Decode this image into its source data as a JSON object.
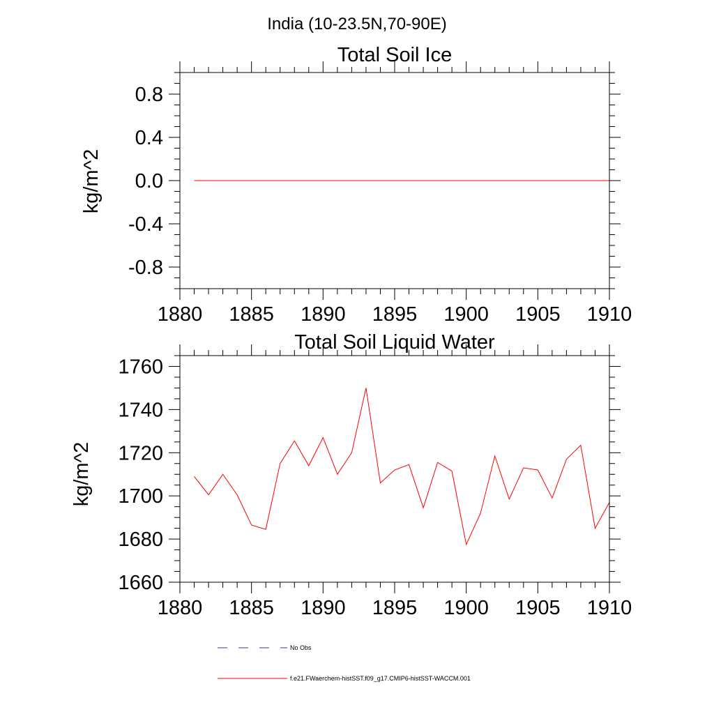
{
  "figure_title": "India (10-23.5N,70-90E)",
  "colors": {
    "series": "#ff0000",
    "obs": "#3b3b8a",
    "axis": "#000000"
  },
  "legend": {
    "obs_label": "No Obs",
    "model_label": "f.e21.FWaerchem-histSST.f09_g17.CMIP6-histSST-WACCM.001"
  },
  "chart_data": [
    {
      "type": "line",
      "title": "Total Soil Ice",
      "xlabel": "",
      "ylabel": "kg/m^2",
      "xlim": [
        1880,
        1910
      ],
      "ylim": [
        -1.0,
        1.0
      ],
      "xticks": [
        1880,
        1885,
        1890,
        1895,
        1900,
        1905,
        1910
      ],
      "xtick_labels": [
        "1880",
        "1885",
        "1890",
        "1895",
        "1900",
        "1905",
        "1910"
      ],
      "yticks": [
        0.8,
        0.4,
        0.0,
        -0.4,
        -0.8
      ],
      "ytick_labels": [
        "0.8",
        "0.4",
        "0.0",
        "-0.4",
        "-0.8"
      ],
      "grid": false,
      "series": [
        {
          "name": "f.e21.FWaerchem-histSST.f09_g17.CMIP6-histSST-WACCM.001",
          "x": [
            1881,
            1882,
            1883,
            1884,
            1885,
            1886,
            1887,
            1888,
            1889,
            1890,
            1891,
            1892,
            1893,
            1894,
            1895,
            1896,
            1897,
            1898,
            1899,
            1900,
            1901,
            1902,
            1903,
            1904,
            1905,
            1906,
            1907,
            1908,
            1909,
            1910
          ],
          "y": [
            0,
            0,
            0,
            0,
            0,
            0,
            0,
            0,
            0,
            0,
            0,
            0,
            0,
            0,
            0,
            0,
            0,
            0,
            0,
            0,
            0,
            0,
            0,
            0,
            0,
            0,
            0,
            0,
            0,
            0
          ]
        }
      ]
    },
    {
      "type": "line",
      "title": "Total Soil Liquid Water",
      "xlabel": "",
      "ylabel": "kg/m^2",
      "xlim": [
        1880,
        1910
      ],
      "ylim": [
        1660,
        1765
      ],
      "xticks": [
        1880,
        1885,
        1890,
        1895,
        1900,
        1905,
        1910
      ],
      "xtick_labels": [
        "1880",
        "1885",
        "1890",
        "1895",
        "1900",
        "1905",
        "1910"
      ],
      "yticks": [
        1760,
        1740,
        1720,
        1700,
        1680,
        1660
      ],
      "ytick_labels": [
        "1760",
        "1740",
        "1720",
        "1700",
        "1680",
        "1660"
      ],
      "grid": false,
      "series": [
        {
          "name": "f.e21.FWaerchem-histSST.f09_g17.CMIP6-histSST-WACCM.001",
          "x": [
            1881,
            1882,
            1883,
            1884,
            1885,
            1886,
            1887,
            1888,
            1889,
            1890,
            1891,
            1892,
            1893,
            1894,
            1895,
            1896,
            1897,
            1898,
            1899,
            1900,
            1901,
            1902,
            1903,
            1904,
            1905,
            1906,
            1907,
            1908,
            1909,
            1910
          ],
          "y": [
            1709,
            1700.5,
            1710,
            1700.5,
            1686.5,
            1684.5,
            1715,
            1725.5,
            1714,
            1727,
            1710,
            1720,
            1750,
            1706,
            1712,
            1714.5,
            1694.5,
            1715.5,
            1711.5,
            1677.5,
            1692,
            1718.5,
            1698.5,
            1713,
            1712,
            1699,
            1717,
            1723.5,
            1685,
            1697
          ]
        }
      ]
    }
  ]
}
